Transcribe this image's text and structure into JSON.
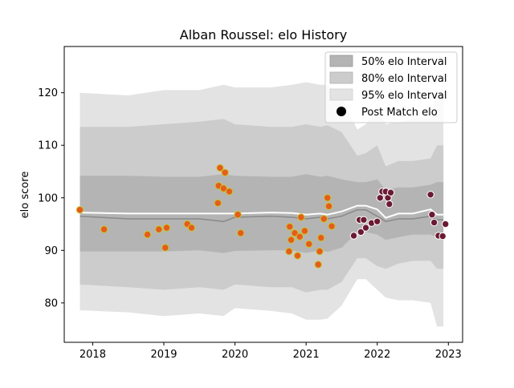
{
  "chart_data": {
    "type": "scatter",
    "title": "Alban Roussel: elo History",
    "xlabel": "",
    "ylabel": "elo score",
    "xlim": [
      2017.6,
      2023.2
    ],
    "ylim": [
      72.5,
      128.8
    ],
    "x_ticks": [
      2018,
      2019,
      2020,
      2021,
      2022,
      2023
    ],
    "y_ticks": [
      80,
      90,
      100,
      110,
      120
    ],
    "grid": false,
    "legend_position": "top-right",
    "legend": [
      {
        "label": "50% elo Interval",
        "kind": "band",
        "color": "#b4b4b4"
      },
      {
        "label": "80% elo Interval",
        "kind": "band",
        "color": "#cccccc"
      },
      {
        "label": "95% elo Interval",
        "kind": "band",
        "color": "#e3e3e3"
      },
      {
        "label": "Post Match elo",
        "kind": "marker",
        "color": "#000000"
      }
    ],
    "bands": {
      "x": [
        2017.82,
        2018.5,
        2019.0,
        2019.5,
        2019.84,
        2020.0,
        2020.5,
        2020.8,
        2021.0,
        2021.2,
        2021.3,
        2021.5,
        2021.72,
        2021.84,
        2022.0,
        2022.12,
        2022.3,
        2022.5,
        2022.75,
        2022.84,
        2022.93
      ],
      "p50_lo": [
        89.8,
        89.8,
        89.8,
        90.0,
        89.5,
        89.9,
        90.0,
        90.0,
        89.5,
        90.0,
        89.7,
        90.5,
        93.5,
        93.5,
        93.0,
        92.0,
        92.5,
        93.0,
        93.0,
        92.5,
        92.5
      ],
      "p50_hi": [
        104.2,
        104.2,
        104.0,
        104.0,
        104.5,
        104.2,
        104.0,
        104.0,
        104.5,
        104.0,
        104.2,
        103.5,
        103.0,
        103.0,
        103.5,
        101.5,
        102.0,
        102.0,
        102.5,
        103.0,
        103.0
      ],
      "p80_lo": [
        83.5,
        83.0,
        82.5,
        83.0,
        82.5,
        83.5,
        83.0,
        83.0,
        82.0,
        82.5,
        82.5,
        84.0,
        88.5,
        88.5,
        87.0,
        86.5,
        87.5,
        88.0,
        88.0,
        86.5,
        86.5
      ],
      "p80_hi": [
        113.5,
        113.5,
        114.0,
        114.5,
        115.0,
        114.0,
        113.5,
        113.5,
        114.0,
        113.5,
        113.8,
        112.5,
        108.0,
        108.5,
        110.0,
        106.0,
        107.0,
        107.0,
        107.5,
        110.0,
        110.0
      ],
      "p95_lo": [
        78.6,
        78.2,
        77.5,
        78.0,
        77.5,
        79.0,
        78.5,
        78.0,
        76.8,
        76.8,
        77.0,
        79.5,
        84.5,
        84.5,
        82.5,
        81.0,
        80.5,
        80.5,
        80.0,
        75.5,
        75.5
      ],
      "p95_hi": [
        120.0,
        119.5,
        120.5,
        120.5,
        121.5,
        121.0,
        121.0,
        121.5,
        122.0,
        121.5,
        121.5,
        119.0,
        113.0,
        114.0,
        116.5,
        114.0,
        114.5,
        115.0,
        115.0,
        120.0,
        120.0
      ],
      "median": [
        96.5,
        96.0,
        96.0,
        96.0,
        95.5,
        96.3,
        96.5,
        96.3,
        96.0,
        96.3,
        96.0,
        96.5,
        97.7,
        97.7,
        96.5,
        95.5,
        96.0,
        96.0,
        96.5,
        95.8,
        95.8
      ],
      "mean": [
        97.2,
        97.0,
        97.0,
        97.0,
        97.0,
        97.0,
        97.2,
        97.1,
        96.8,
        97.0,
        96.8,
        97.4,
        98.5,
        98.5,
        97.8,
        96.2,
        97.0,
        97.0,
        97.8,
        96.8,
        96.8
      ]
    },
    "series": [
      {
        "marker_face": "#e55c1e",
        "marker_edge": "#c8c82a",
        "points": [
          {
            "x": 2017.82,
            "y": 97.7
          },
          {
            "x": 2018.16,
            "y": 94.0
          },
          {
            "x": 2018.77,
            "y": 93.0
          },
          {
            "x": 2018.93,
            "y": 94.0
          },
          {
            "x": 2019.02,
            "y": 90.5
          },
          {
            "x": 2019.04,
            "y": 94.3
          },
          {
            "x": 2019.33,
            "y": 95.0
          },
          {
            "x": 2019.39,
            "y": 94.3
          },
          {
            "x": 2019.76,
            "y": 99.0
          },
          {
            "x": 2019.77,
            "y": 102.3
          },
          {
            "x": 2019.79,
            "y": 105.7
          },
          {
            "x": 2019.84,
            "y": 101.8
          },
          {
            "x": 2019.86,
            "y": 104.8
          },
          {
            "x": 2019.92,
            "y": 101.2
          },
          {
            "x": 2020.04,
            "y": 96.8
          },
          {
            "x": 2020.08,
            "y": 93.3
          },
          {
            "x": 2020.76,
            "y": 89.8
          },
          {
            "x": 2020.77,
            "y": 94.5
          },
          {
            "x": 2020.79,
            "y": 92.0
          },
          {
            "x": 2020.84,
            "y": 93.3
          },
          {
            "x": 2020.88,
            "y": 89.0
          },
          {
            "x": 2020.91,
            "y": 92.6
          },
          {
            "x": 2020.93,
            "y": 96.3
          },
          {
            "x": 2020.98,
            "y": 93.7
          },
          {
            "x": 2021.04,
            "y": 91.2
          },
          {
            "x": 2021.17,
            "y": 87.3
          },
          {
            "x": 2021.19,
            "y": 89.8
          },
          {
            "x": 2021.21,
            "y": 92.4
          },
          {
            "x": 2021.25,
            "y": 96.0
          },
          {
            "x": 2021.3,
            "y": 100.0
          },
          {
            "x": 2021.32,
            "y": 98.4
          },
          {
            "x": 2021.36,
            "y": 94.6
          }
        ]
      },
      {
        "marker_face": "#6b1a33",
        "marker_edge": "#ffffff",
        "points": [
          {
            "x": 2021.67,
            "y": 92.8
          },
          {
            "x": 2021.75,
            "y": 95.8
          },
          {
            "x": 2021.77,
            "y": 93.5
          },
          {
            "x": 2021.81,
            "y": 95.8
          },
          {
            "x": 2021.84,
            "y": 94.3
          },
          {
            "x": 2021.92,
            "y": 95.2
          },
          {
            "x": 2022.0,
            "y": 95.5
          },
          {
            "x": 2022.04,
            "y": 100.0
          },
          {
            "x": 2022.07,
            "y": 101.2
          },
          {
            "x": 2022.12,
            "y": 101.2
          },
          {
            "x": 2022.15,
            "y": 100.0
          },
          {
            "x": 2022.17,
            "y": 98.8
          },
          {
            "x": 2022.19,
            "y": 101.0
          },
          {
            "x": 2022.75,
            "y": 100.6
          },
          {
            "x": 2022.77,
            "y": 96.8
          },
          {
            "x": 2022.8,
            "y": 95.3
          },
          {
            "x": 2022.86,
            "y": 92.8
          },
          {
            "x": 2022.92,
            "y": 92.7
          },
          {
            "x": 2022.96,
            "y": 95.0
          }
        ]
      }
    ]
  }
}
